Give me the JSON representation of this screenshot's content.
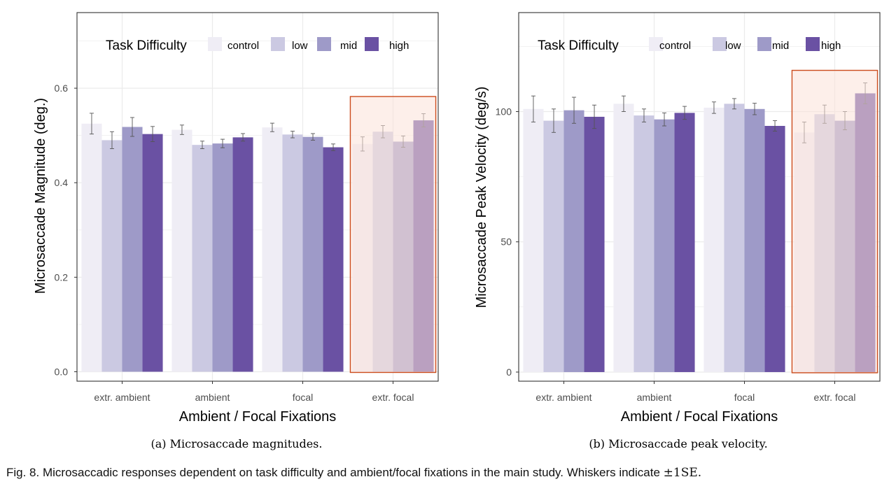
{
  "figure": {
    "caption_prefix": "Fig. 8.",
    "caption_text": "Microsaccadic responses dependent on task difficulty and ambient/focal fixations in the main study. Whiskers indicate",
    "caption_math": "±1SE."
  },
  "colors": {
    "control": "#efedf5",
    "low": "#cbc9e2",
    "mid": "#9e9ac8",
    "high": "#6a51a3",
    "highlight_fill": "#fbe2d8",
    "highlight_stroke": "#cc4c1d"
  },
  "chart_data": [
    {
      "type": "bar",
      "subcaption": "(a) Microsaccade magnitudes.",
      "xlabel": "Ambient / Focal Fixations",
      "ylabel": "Microsaccade Magnitude (deg.)",
      "ylim": [
        -0.02,
        0.76
      ],
      "yticks": [
        0.0,
        0.2,
        0.4,
        0.6
      ],
      "ytick_labels": [
        "0.0",
        "0.2",
        "0.4",
        "0.6"
      ],
      "grid": true,
      "legend_title": "Task Difficulty",
      "legend_position": "top-inside",
      "categories": [
        "extr. ambient",
        "ambient",
        "focal",
        "extr. focal"
      ],
      "highlight_category": "extr. focal",
      "series": [
        {
          "name": "control",
          "values": [
            0.525,
            0.512,
            0.517,
            0.482
          ],
          "se": [
            0.022,
            0.01,
            0.009,
            0.015
          ]
        },
        {
          "name": "low",
          "values": [
            0.49,
            0.48,
            0.502,
            0.508
          ],
          "se": [
            0.018,
            0.008,
            0.007,
            0.013
          ]
        },
        {
          "name": "mid",
          "values": [
            0.518,
            0.483,
            0.497,
            0.487
          ],
          "se": [
            0.02,
            0.009,
            0.007,
            0.012
          ]
        },
        {
          "name": "high",
          "values": [
            0.503,
            0.496,
            0.475,
            0.532
          ],
          "se": [
            0.016,
            0.008,
            0.007,
            0.014
          ]
        }
      ]
    },
    {
      "type": "bar",
      "subcaption": "(b) Microsaccade peak velocity.",
      "xlabel": "Ambient / Focal Fixations",
      "ylabel": "Microsaccade Peak Velocity (deg/s)",
      "ylim": [
        -3.5,
        138
      ],
      "yticks": [
        0,
        50,
        100
      ],
      "ytick_labels": [
        "0",
        "50",
        "100"
      ],
      "grid": true,
      "legend_title": "Task Difficulty",
      "legend_position": "top-inside",
      "categories": [
        "extr. ambient",
        "ambient",
        "focal",
        "extr. focal"
      ],
      "highlight_category": "extr. focal",
      "series": [
        {
          "name": "control",
          "values": [
            101,
            103,
            101.5,
            92
          ],
          "se": [
            5,
            3,
            2.2,
            4
          ]
        },
        {
          "name": "low",
          "values": [
            96.5,
            98.5,
            103,
            99
          ],
          "se": [
            4.5,
            2.5,
            2,
            3.5
          ]
        },
        {
          "name": "mid",
          "values": [
            100.5,
            97,
            101,
            96.5
          ],
          "se": [
            5,
            2.5,
            2.2,
            3.5
          ]
        },
        {
          "name": "high",
          "values": [
            98,
            99.5,
            94.5,
            107
          ],
          "se": [
            4.5,
            2.5,
            2,
            4
          ]
        }
      ]
    }
  ]
}
